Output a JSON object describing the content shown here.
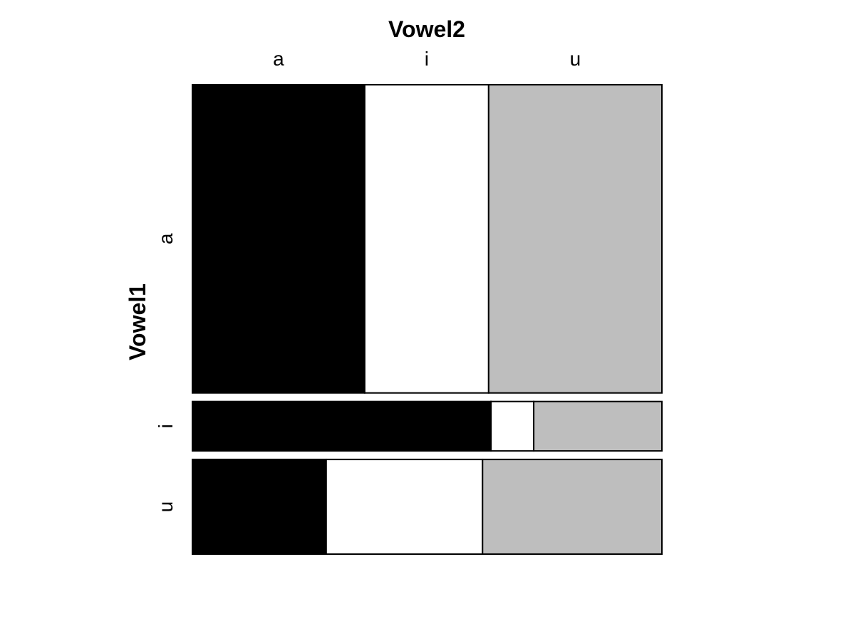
{
  "chart_data": {
    "type": "mosaic",
    "title": "",
    "xlabel": "Vowel2",
    "ylabel": "Vowel1",
    "column_categories": [
      "a",
      "i",
      "u"
    ],
    "row_categories": [
      "a",
      "i",
      "u"
    ],
    "row_proportions": [
      0.661,
      0.106,
      0.203
    ],
    "series": [
      {
        "row": "a",
        "values": [
          0.367,
          0.264,
          0.369
        ]
      },
      {
        "row": "i",
        "values": [
          0.636,
          0.091,
          0.273
        ]
      },
      {
        "row": "u",
        "values": [
          0.285,
          0.333,
          0.382
        ]
      }
    ],
    "colors": [
      "#000000",
      "#ffffff",
      "#bebebe"
    ],
    "legend": "none",
    "grid": false
  }
}
